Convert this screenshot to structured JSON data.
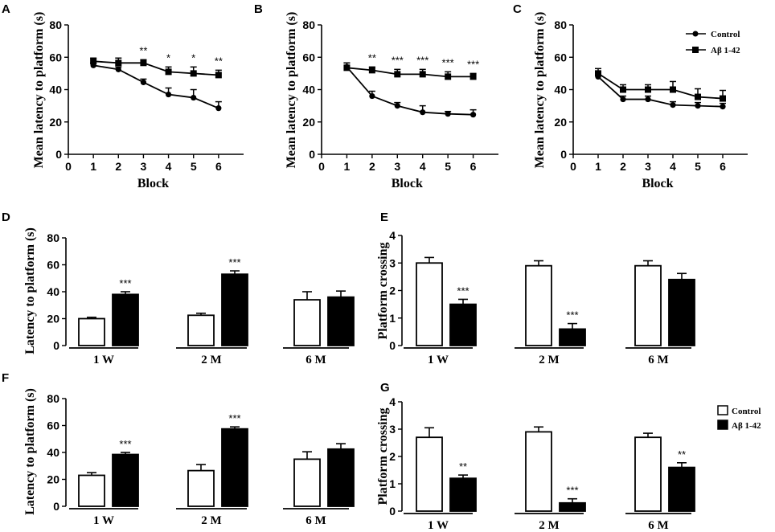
{
  "legend_line": {
    "control": "Control",
    "abeta": "Aβ 1-42"
  },
  "legend_bar": {
    "control": "Control",
    "abeta": "Aβ 1-42"
  },
  "chart_data": [
    {
      "id": "A",
      "type": "line",
      "letter": "A",
      "xlabel": "Block",
      "ylabel": "Mean latency to platform (s)",
      "xlim": [
        0,
        7
      ],
      "ylim": [
        0,
        80
      ],
      "xticks": [
        0,
        1,
        2,
        3,
        4,
        5,
        6
      ],
      "yticks": [
        0,
        20,
        40,
        60,
        80
      ],
      "x": [
        1,
        2,
        3,
        4,
        5,
        6
      ],
      "series": [
        {
          "name": "Control",
          "marker": "circle",
          "values": [
            55,
            52.5,
            44.5,
            37,
            35,
            28.5
          ],
          "err": [
            1.5,
            1.5,
            2,
            4,
            5,
            4
          ]
        },
        {
          "name": "Aβ 1-42",
          "marker": "square",
          "values": [
            57.5,
            56.5,
            56.5,
            51,
            50,
            49
          ],
          "err": [
            2,
            3,
            2,
            3,
            4,
            3
          ]
        }
      ],
      "annotations": [
        "",
        "",
        "**",
        "*",
        "*",
        "**"
      ]
    },
    {
      "id": "B",
      "type": "line",
      "letter": "B",
      "xlabel": "Block",
      "ylabel": "Mean latency to platform (s)",
      "xlim": [
        0,
        7
      ],
      "ylim": [
        0,
        80
      ],
      "xticks": [
        0,
        1,
        2,
        3,
        4,
        5,
        6
      ],
      "yticks": [
        0,
        20,
        40,
        60,
        80
      ],
      "x": [
        1,
        2,
        3,
        4,
        5,
        6
      ],
      "series": [
        {
          "name": "Control",
          "marker": "circle",
          "values": [
            54,
            36,
            30,
            26,
            25,
            24.5
          ],
          "err": [
            2.5,
            3,
            2,
            4,
            1.5,
            3
          ]
        },
        {
          "name": "Aβ 1-42",
          "marker": "square",
          "values": [
            53.5,
            52,
            49.5,
            49.5,
            48,
            48
          ],
          "err": [
            3,
            2,
            3,
            3,
            3,
            2
          ]
        }
      ],
      "annotations": [
        "",
        "**",
        "***",
        "***",
        "***",
        "***"
      ]
    },
    {
      "id": "C",
      "type": "line",
      "letter": "C",
      "xlabel": "Block",
      "ylabel": "Mean latency to platform (s)",
      "xlim": [
        0,
        7
      ],
      "ylim": [
        0,
        80
      ],
      "xticks": [
        0,
        1,
        2,
        3,
        4,
        5,
        6
      ],
      "yticks": [
        0,
        20,
        40,
        60,
        80
      ],
      "x": [
        1,
        2,
        3,
        4,
        5,
        6
      ],
      "series": [
        {
          "name": "Control",
          "marker": "circle",
          "values": [
            48,
            34,
            34,
            30.5,
            30,
            29.5
          ],
          "err": [
            2,
            2,
            2,
            2,
            2,
            2
          ]
        },
        {
          "name": "Aβ 1-42",
          "marker": "square",
          "values": [
            50,
            40,
            40,
            40,
            35.5,
            34.5
          ],
          "err": [
            3,
            3,
            3,
            5,
            5,
            5
          ]
        }
      ],
      "annotations": [
        "",
        "",
        "",
        "",
        "",
        ""
      ]
    },
    {
      "id": "D",
      "type": "bar",
      "letter": "D",
      "ylabel": "Latency to platform (s)",
      "ylim": [
        0,
        80
      ],
      "yticks": [
        0,
        20,
        40,
        60,
        80
      ],
      "categories": [
        "1 W",
        "2 M",
        "6 M"
      ],
      "series": [
        {
          "name": "Control",
          "values": [
            20,
            22.5,
            34
          ],
          "err": [
            1,
            1.5,
            6
          ]
        },
        {
          "name": "Aβ 1-42",
          "values": [
            38,
            53,
            36
          ],
          "err": [
            2,
            2.5,
            4.5
          ]
        }
      ],
      "annotations": [
        "***",
        "***",
        ""
      ]
    },
    {
      "id": "E",
      "type": "bar",
      "letter": "E",
      "ylabel": "Platform crossing",
      "ylim": [
        0,
        4
      ],
      "yticks": [
        0,
        1,
        2,
        3,
        4
      ],
      "categories": [
        "1 W",
        "2 M",
        "6 M"
      ],
      "series": [
        {
          "name": "Control",
          "values": [
            3.0,
            2.9,
            2.9
          ],
          "err": [
            0.2,
            0.18,
            0.18
          ]
        },
        {
          "name": "Aβ 1-42",
          "values": [
            1.5,
            0.6,
            2.4
          ],
          "err": [
            0.18,
            0.2,
            0.22
          ]
        }
      ],
      "annotations": [
        "***",
        "***",
        ""
      ]
    },
    {
      "id": "F",
      "type": "bar",
      "letter": "F",
      "ylabel": "Latency to platform (s)",
      "ylim": [
        0,
        80
      ],
      "yticks": [
        0,
        20,
        40,
        60,
        80
      ],
      "categories": [
        "1 W",
        "2 M",
        "6 M"
      ],
      "series": [
        {
          "name": "Control",
          "values": [
            23,
            26.5,
            35
          ],
          "err": [
            2,
            4.5,
            5.5
          ]
        },
        {
          "name": "Aβ 1-42",
          "values": [
            38.5,
            57.5,
            42.5
          ],
          "err": [
            1.5,
            1.5,
            4
          ]
        }
      ],
      "annotations": [
        "***",
        "***",
        ""
      ]
    },
    {
      "id": "G",
      "type": "bar",
      "letter": "G",
      "ylabel": "Platform crossing",
      "ylim": [
        0,
        4
      ],
      "yticks": [
        0,
        1,
        2,
        3,
        4
      ],
      "categories": [
        "1 W",
        "2 M",
        "6 M"
      ],
      "series": [
        {
          "name": "Control",
          "values": [
            2.7,
            2.9,
            2.7
          ],
          "err": [
            0.35,
            0.18,
            0.15
          ]
        },
        {
          "name": "Aβ 1-42",
          "values": [
            1.2,
            0.3,
            1.6
          ],
          "err": [
            0.12,
            0.15,
            0.17
          ]
        }
      ],
      "annotations": [
        "**",
        "***",
        "**"
      ]
    }
  ]
}
